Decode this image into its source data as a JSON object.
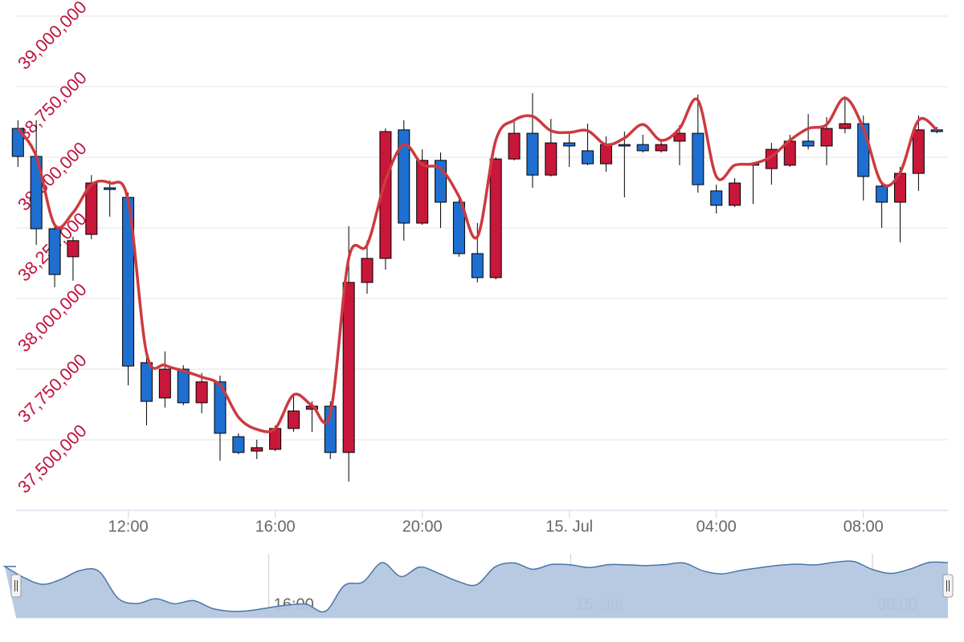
{
  "chart_data": {
    "type": "candlestick",
    "x": [
      9,
      9.5,
      10,
      10.5,
      11,
      11.5,
      12,
      12.5,
      13,
      13.5,
      14,
      14.5,
      15,
      15.5,
      16,
      16.5,
      17,
      17.5,
      18,
      18.5,
      19,
      19.5,
      20,
      20.5,
      21,
      21.5,
      22,
      22.5,
      23,
      23.5,
      24,
      24.5,
      25,
      25.5,
      26,
      26.5,
      27,
      27.5,
      28,
      28.5,
      29,
      29.5,
      30,
      30.5,
      31,
      31.5,
      32,
      32.5,
      33,
      33.5,
      34
    ],
    "open": [
      38602000,
      38503000,
      38247000,
      38148000,
      38227000,
      38392000,
      38358000,
      37773000,
      37648000,
      37750000,
      37631000,
      37705000,
      37511000,
      37460000,
      37466000,
      37540000,
      37608000,
      37619000,
      37455000,
      38057000,
      38142000,
      38597000,
      38267000,
      38489000,
      38341000,
      38159000,
      38074000,
      38494000,
      38585000,
      38437000,
      38551000,
      38523000,
      38477000,
      38545000,
      38545000,
      38523000,
      38557000,
      38585000,
      38381000,
      38330000,
      38477000,
      38460000,
      38472000,
      38557000,
      38540000,
      38602000,
      38619000,
      38398000,
      38341000,
      38443000,
      38597000
    ],
    "high": [
      38631000,
      38631000,
      38267000,
      38219000,
      38437000,
      38418000,
      38375000,
      37793000,
      37813000,
      37764000,
      37736000,
      37727000,
      37523000,
      37500000,
      37551000,
      37665000,
      37636000,
      37636000,
      38256000,
      38205000,
      38602000,
      38631000,
      38528000,
      38517000,
      38361000,
      38267000,
      38500000,
      38625000,
      38727000,
      38636000,
      38585000,
      38619000,
      38574000,
      38591000,
      38580000,
      38563000,
      38614000,
      38722000,
      38403000,
      38426000,
      38483000,
      38551000,
      38580000,
      38653000,
      38642000,
      38716000,
      38648000,
      38415000,
      38466000,
      38648000,
      38608000
    ],
    "low": [
      38466000,
      38190000,
      38040000,
      38063000,
      38210000,
      38290000,
      37693000,
      37551000,
      37614000,
      37622000,
      37594000,
      37426000,
      37449000,
      37432000,
      37460000,
      37528000,
      37528000,
      37432000,
      37352000,
      38017000,
      38102000,
      38205000,
      38261000,
      38250000,
      38148000,
      38057000,
      38068000,
      38489000,
      38392000,
      38432000,
      38466000,
      38472000,
      38449000,
      38358000,
      38517000,
      38517000,
      38472000,
      38375000,
      38301000,
      38324000,
      38335000,
      38403000,
      38466000,
      38528000,
      38472000,
      38585000,
      38347000,
      38250000,
      38199000,
      38381000,
      38585000
    ],
    "close": [
      38503000,
      38247000,
      38085000,
      38205000,
      38409000,
      38386000,
      37761000,
      37636000,
      37750000,
      37631000,
      37705000,
      37523000,
      37455000,
      37472000,
      37540000,
      37602000,
      37619000,
      37455000,
      38057000,
      38142000,
      38591000,
      38267000,
      38489000,
      38341000,
      38159000,
      38074000,
      38494000,
      38585000,
      38437000,
      38551000,
      38540000,
      38477000,
      38545000,
      38540000,
      38523000,
      38545000,
      38585000,
      38403000,
      38330000,
      38409000,
      38472000,
      38528000,
      38557000,
      38540000,
      38602000,
      38619000,
      38432000,
      38341000,
      38443000,
      38597000,
      38591000
    ],
    "up_color": "#c8173a",
    "down_color": "#1e6fd0",
    "line": {
      "color": "#cd3a3f",
      "values": [
        38602000,
        38503000,
        38261000,
        38304000,
        38403000,
        38409000,
        38347000,
        37807000,
        37764000,
        37744000,
        37722000,
        37693000,
        37580000,
        37537000,
        37540000,
        37659000,
        37622000,
        37594000,
        38142000,
        38190000,
        38418000,
        38545000,
        38474000,
        38460000,
        38361000,
        38219000,
        38560000,
        38631000,
        38645000,
        38594000,
        38588000,
        38594000,
        38545000,
        38568000,
        38616000,
        38560000,
        38602000,
        38702000,
        38432000,
        38472000,
        38477000,
        38503000,
        38560000,
        38602000,
        38616000,
        38710000,
        38602000,
        38409000,
        38446000,
        38631000,
        38597000
      ]
    },
    "xlim": [
      8.95,
      34.3
    ],
    "xticks": [
      {
        "value": 12,
        "label": "12:00"
      },
      {
        "value": 16,
        "label": "16:00"
      },
      {
        "value": 20,
        "label": "20:00"
      },
      {
        "value": 24,
        "label": "15. Jul"
      },
      {
        "value": 28,
        "label": "04:00"
      },
      {
        "value": 32,
        "label": "08:00"
      }
    ],
    "ylim": [
      37250000,
      39000000
    ],
    "yticks": [
      {
        "value": 37500000,
        "label": "37,500,000"
      },
      {
        "value": 37750000,
        "label": "37,750,000"
      },
      {
        "value": 38000000,
        "label": "38,000,000"
      },
      {
        "value": 38250000,
        "label": "38,250,000"
      },
      {
        "value": 38500000,
        "label": "38,500,000"
      },
      {
        "value": 38750000,
        "label": "38,750,000"
      },
      {
        "value": 39000000,
        "label": "39,000,000"
      }
    ],
    "grid": true,
    "navigator": {
      "color": "#b4c7e0",
      "line_color": "#4a74a8",
      "xlim": [
        9.3,
        34
      ],
      "ylim": [
        37300000,
        38800000
      ],
      "xticks": [
        {
          "value": 16,
          "label": "16:00"
        },
        {
          "value": 24,
          "label": "15. Jul"
        },
        {
          "value": 32,
          "label": "08:00"
        }
      ]
    }
  }
}
